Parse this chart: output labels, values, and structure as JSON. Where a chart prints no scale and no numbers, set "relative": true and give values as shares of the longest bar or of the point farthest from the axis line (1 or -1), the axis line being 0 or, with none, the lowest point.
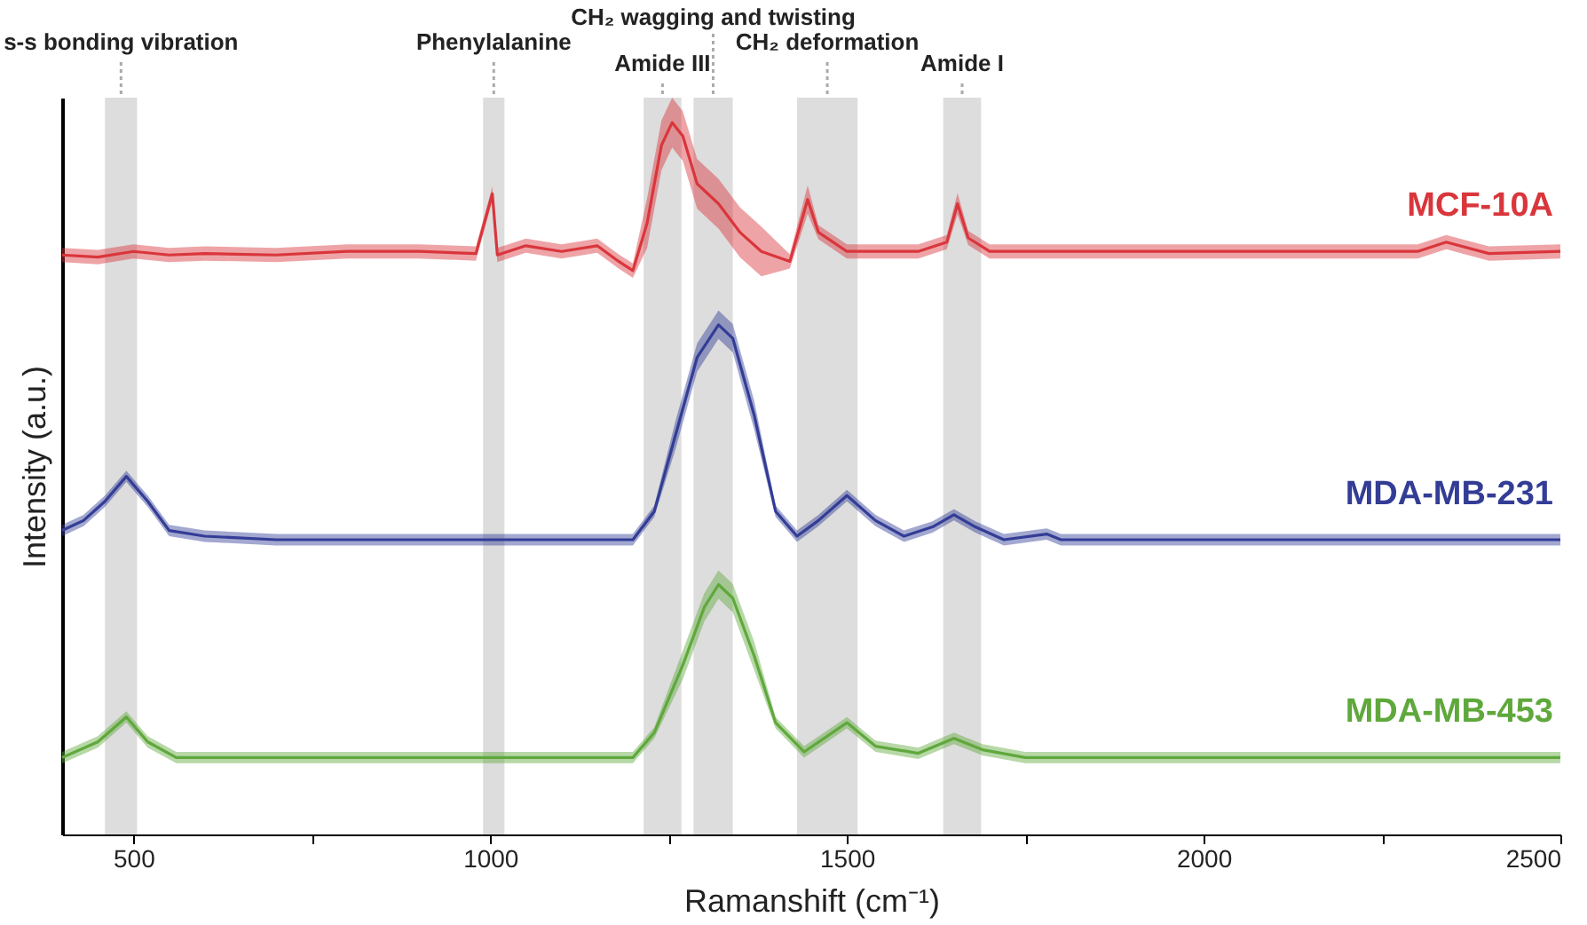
{
  "chart_data": {
    "type": "line",
    "relative": true,
    "xlabel": "Ramanshift (cm⁻¹)",
    "ylabel": "Intensity (a.u.)",
    "xlim": [
      400,
      2500
    ],
    "xticks": [
      500,
      {
        "value": 750,
        "label": null
      },
      1000,
      {
        "value": 1250,
        "label": null
      },
      1500,
      {
        "value": 1750,
        "label": null
      },
      2000,
      {
        "value": 2250,
        "label": null
      },
      2500
    ],
    "grid": false,
    "series": [
      {
        "name": "MCF-10A",
        "color": "#d9363c",
        "x": [
          400,
          450,
          500,
          550,
          600,
          700,
          800,
          900,
          980,
          1003,
          1010,
          1050,
          1100,
          1150,
          1180,
          1200,
          1220,
          1240,
          1255,
          1270,
          1290,
          1320,
          1350,
          1380,
          1420,
          1445,
          1460,
          1500,
          1550,
          1600,
          1640,
          1655,
          1670,
          1700,
          1800,
          2000,
          2200,
          2300,
          2340,
          2400,
          2500
        ],
        "values": [
          0.814,
          0.811,
          0.819,
          0.814,
          0.816,
          0.814,
          0.819,
          0.819,
          0.816,
          0.9,
          0.814,
          0.827,
          0.819,
          0.827,
          0.805,
          0.792,
          0.859,
          0.968,
          1,
          0.981,
          0.914,
          0.886,
          0.846,
          0.819,
          0.805,
          0.892,
          0.846,
          0.819,
          0.819,
          0.819,
          0.832,
          0.886,
          0.838,
          0.819,
          0.819,
          0.819,
          0.819,
          0.819,
          0.832,
          0.816,
          0.819
        ],
        "lower": [
          0.804,
          0.801,
          0.809,
          0.804,
          0.806,
          0.804,
          0.809,
          0.809,
          0.806,
          0.89,
          0.804,
          0.817,
          0.809,
          0.817,
          0.795,
          0.782,
          0.824,
          0.933,
          0.965,
          0.946,
          0.879,
          0.851,
          0.811,
          0.784,
          0.795,
          0.872,
          0.836,
          0.809,
          0.809,
          0.809,
          0.822,
          0.871,
          0.828,
          0.809,
          0.809,
          0.809,
          0.809,
          0.809,
          0.822,
          0.806,
          0.809
        ],
        "upper": [
          0.824,
          0.821,
          0.829,
          0.824,
          0.826,
          0.824,
          0.829,
          0.829,
          0.826,
          0.91,
          0.824,
          0.837,
          0.829,
          0.837,
          0.815,
          0.802,
          0.894,
          1.003,
          1.035,
          1.016,
          0.949,
          0.921,
          0.881,
          0.854,
          0.815,
          0.912,
          0.856,
          0.829,
          0.829,
          0.829,
          0.842,
          0.901,
          0.848,
          0.829,
          0.829,
          0.829,
          0.829,
          0.829,
          0.842,
          0.826,
          0.829
        ]
      },
      {
        "name": "MDA-MB-231",
        "color": "#333d96",
        "x": [
          400,
          430,
          460,
          490,
          520,
          550,
          600,
          700,
          800,
          900,
          1000,
          1100,
          1200,
          1230,
          1260,
          1290,
          1320,
          1340,
          1370,
          1400,
          1430,
          1460,
          1500,
          1540,
          1580,
          1620,
          1650,
          1680,
          1720,
          1780,
          1800,
          2000,
          2500
        ],
        "values": [
          0.427,
          0.441,
          0.468,
          0.503,
          0.468,
          0.427,
          0.419,
          0.414,
          0.414,
          0.414,
          0.414,
          0.414,
          0.414,
          0.454,
          0.562,
          0.67,
          0.716,
          0.697,
          0.589,
          0.454,
          0.419,
          0.441,
          0.476,
          0.441,
          0.419,
          0.432,
          0.449,
          0.432,
          0.414,
          0.422,
          0.414,
          0.414,
          0.414
        ],
        "lower": [
          0.419,
          0.433,
          0.46,
          0.495,
          0.46,
          0.419,
          0.411,
          0.406,
          0.406,
          0.406,
          0.406,
          0.406,
          0.406,
          0.446,
          0.542,
          0.65,
          0.696,
          0.677,
          0.569,
          0.446,
          0.411,
          0.433,
          0.468,
          0.433,
          0.411,
          0.424,
          0.441,
          0.424,
          0.406,
          0.414,
          0.406,
          0.406,
          0.406
        ],
        "upper": [
          0.435,
          0.449,
          0.476,
          0.511,
          0.476,
          0.435,
          0.427,
          0.422,
          0.422,
          0.422,
          0.422,
          0.422,
          0.422,
          0.462,
          0.582,
          0.69,
          0.736,
          0.717,
          0.609,
          0.462,
          0.427,
          0.449,
          0.484,
          0.449,
          0.427,
          0.44,
          0.457,
          0.44,
          0.422,
          0.43,
          0.422,
          0.422,
          0.422
        ]
      },
      {
        "name": "MDA-MB-453",
        "color": "#5fa83c",
        "x": [
          400,
          450,
          490,
          520,
          560,
          700,
          1000,
          1200,
          1230,
          1270,
          1300,
          1320,
          1340,
          1370,
          1400,
          1440,
          1500,
          1540,
          1600,
          1650,
          1690,
          1750,
          2000,
          2500
        ],
        "values": [
          0.108,
          0.13,
          0.165,
          0.13,
          0.108,
          0.108,
          0.108,
          0.108,
          0.143,
          0.238,
          0.319,
          0.351,
          0.332,
          0.251,
          0.157,
          0.116,
          0.157,
          0.124,
          0.114,
          0.135,
          0.119,
          0.108,
          0.108,
          0.108
        ],
        "lower": [
          0.1,
          0.122,
          0.157,
          0.122,
          0.1,
          0.1,
          0.1,
          0.1,
          0.135,
          0.218,
          0.299,
          0.331,
          0.312,
          0.231,
          0.149,
          0.108,
          0.149,
          0.116,
          0.106,
          0.127,
          0.111,
          0.1,
          0.1,
          0.1
        ],
        "upper": [
          0.116,
          0.138,
          0.173,
          0.138,
          0.116,
          0.116,
          0.116,
          0.116,
          0.151,
          0.258,
          0.339,
          0.371,
          0.352,
          0.271,
          0.165,
          0.124,
          0.165,
          0.132,
          0.122,
          0.143,
          0.127,
          0.116,
          0.116,
          0.116
        ]
      }
    ],
    "bands": [
      {
        "axis": "x",
        "from": 460,
        "to": 505,
        "label": "s-s bonding vibration",
        "color": "#d9d9d9"
      },
      {
        "axis": "x",
        "from": 990,
        "to": 1020,
        "label": "Phenylalanine",
        "color": "#d9d9d9"
      },
      {
        "axis": "x",
        "from": 1215,
        "to": 1268,
        "label": "Amide III",
        "color": "#d9d9d9"
      },
      {
        "axis": "x",
        "from": 1285,
        "to": 1340,
        "label": "CH₂ wagging and twisting",
        "color": "#d9d9d9"
      },
      {
        "axis": "x",
        "from": 1430,
        "to": 1515,
        "label": "CH₂ deformation",
        "color": "#d9d9d9"
      },
      {
        "axis": "x",
        "from": 1635,
        "to": 1688,
        "label": "Amide I",
        "color": "#d9d9d9"
      }
    ]
  }
}
